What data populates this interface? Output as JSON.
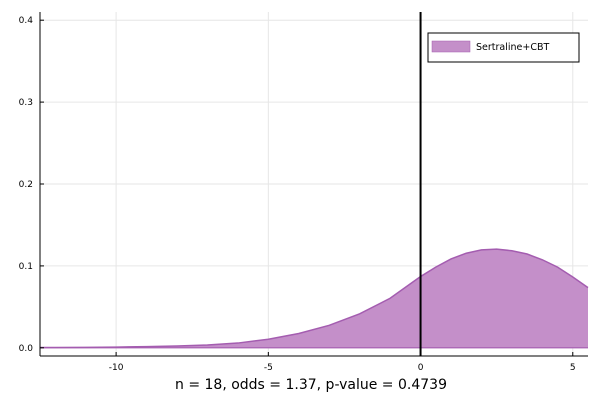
{
  "chart_data": {
    "type": "area",
    "title": "",
    "xlabel": "n = 18,       odds = 1.37,       p-value = 0.4739",
    "ylabel": "",
    "xlim": [
      -12.5,
      5.5
    ],
    "ylim": [
      -0.01,
      0.41
    ],
    "x_ticks": [
      -10,
      -5,
      0,
      5
    ],
    "x_tick_labels": [
      "-10",
      "-5",
      "0",
      "5"
    ],
    "y_ticks": [
      0.0,
      0.1,
      0.2,
      0.3,
      0.4
    ],
    "y_tick_labels": [
      "0.0",
      "0.1",
      "0.2",
      "0.3",
      "0.4"
    ],
    "grid": true,
    "legend_position": "top-right",
    "vertical_line": {
      "x": 0,
      "color": "#000000"
    },
    "series": [
      {
        "name": "Sertraline+CBT",
        "color": "#c48fc9",
        "line_color": "#a45db0",
        "x": [
          -12.5,
          -12,
          -11,
          -10,
          -9,
          -8,
          -7,
          -6,
          -5,
          -4,
          -3,
          -2,
          -1,
          0,
          0.5,
          1,
          1.5,
          2,
          2.5,
          3,
          3.5,
          4,
          4.5,
          5,
          5.5
        ],
        "values": [
          0.0003,
          0.0003,
          0.0005,
          0.0009,
          0.0014,
          0.0022,
          0.0035,
          0.0058,
          0.0105,
          0.0175,
          0.0275,
          0.0415,
          0.0605,
          0.087,
          0.0985,
          0.1085,
          0.1155,
          0.1195,
          0.1205,
          0.1185,
          0.1145,
          0.1075,
          0.0985,
          0.0865,
          0.0735
        ]
      }
    ]
  }
}
